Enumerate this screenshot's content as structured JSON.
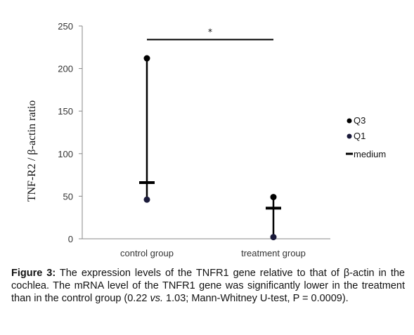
{
  "chart_data": {
    "type": "scatter",
    "ylabel": "TNF-R2 / β-actin ratio",
    "ylim": [
      0,
      250
    ],
    "yticks": [
      0,
      50,
      100,
      150,
      200,
      250
    ],
    "categories": [
      "control group",
      "treatment group"
    ],
    "series": [
      {
        "name": "Q3",
        "values": [
          212,
          49
        ]
      },
      {
        "name": "Q1",
        "values": [
          46,
          2
        ]
      },
      {
        "name": "medium",
        "values": [
          66,
          36
        ]
      }
    ],
    "significance": {
      "symbol": "*",
      "between": [
        "control group",
        "treatment group"
      ],
      "y": 234
    },
    "legend": [
      "Q3",
      "Q1",
      "medium"
    ],
    "legend_position": "right",
    "grid": false
  },
  "caption": {
    "label": "Figure 3:",
    "text_before_beta": " The expression levels of the TNFR1 gene relative to that of ",
    "beta": "β",
    "text_after_beta": "-actin in the cochlea. The mRNA level of the TNFR1 gene was significantly lower in the treatment than in the control group (0.22 ",
    "vs": "vs.",
    "text_end": " 1.03; Mann-Whitney U-test, P = 0.0009)."
  },
  "colors": {
    "marker": "#000000",
    "q1_marker": "#1a1a3a",
    "axis": "#888888"
  }
}
